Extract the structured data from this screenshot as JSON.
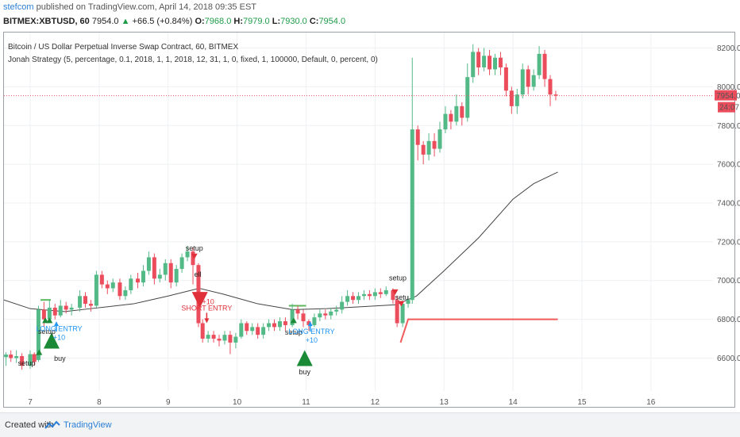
{
  "header": {
    "publisher": "stefcom",
    "published_text": "published on TradingView.com, April 14, 2018 09:35 EST",
    "symbol": "BITMEX:XBTUSD, 60",
    "last": "7954.0",
    "change": "+66.5 (+0.84%)",
    "open_label": "O:",
    "open": "7968.0",
    "high_label": "H:",
    "high": "7979.0",
    "low_label": "L:",
    "low": "7930.0",
    "close_label": "C:",
    "close": "7954.0"
  },
  "legend": {
    "title": "Bitcoin / US Dollar Perpetual Inverse Swap Contract, 60, BITMEX",
    "strategy": "Jonah Strategy (5, percentage, 0.1, 2018, 1, 1, 2018, 12, 31, 1, 0, fixed, 1, 100000, Default, 0, percent, 0)"
  },
  "footer": {
    "created_with": "Created with",
    "brand": "TradingView"
  },
  "colors": {
    "up": "#53b987",
    "down": "#eb4d5c",
    "buy_marker": "#1a8a36",
    "sell_marker": "#e0303a",
    "entry_text": "#2196f3",
    "ma_line": "#444444",
    "stop_line": "#f05a5a",
    "price_line": "#e8556a",
    "grid": "#eef0f3"
  },
  "chart_data": {
    "type": "candlestick",
    "title": "Bitcoin / US Dollar Perpetual Inverse Swap Contract, 60, BITMEX",
    "y_axis": {
      "ticks": [
        6600,
        6800,
        7000,
        7200,
        7400,
        7600,
        7800,
        8000,
        8200
      ],
      "ylim": [
        6430,
        8280
      ]
    },
    "x_axis": {
      "ticks": [
        "7",
        "8",
        "9",
        "10",
        "11",
        "12",
        "13",
        "14",
        "15",
        "16"
      ],
      "xlim": [
        6.62,
        16.9
      ]
    },
    "last_price": {
      "value": 7954.0,
      "label": "7954.0",
      "countdown": "24:07"
    },
    "candles_approx": [
      [
        6.65,
        6605,
        6618,
        6560,
        6630
      ],
      [
        6.72,
        6618,
        6600,
        6580,
        6640
      ],
      [
        6.8,
        6600,
        6610,
        6575,
        6640
      ],
      [
        6.88,
        6610,
        6560,
        6540,
        6625
      ],
      [
        7.0,
        6560,
        6620,
        6545,
        6640
      ],
      [
        7.06,
        6620,
        6580,
        6560,
        6630
      ],
      [
        7.12,
        6590,
        6850,
        6580,
        6870
      ],
      [
        7.2,
        6850,
        6800,
        6760,
        6890
      ],
      [
        7.28,
        6800,
        6860,
        6780,
        6900
      ],
      [
        7.36,
        6860,
        6820,
        6800,
        6880
      ],
      [
        7.44,
        6820,
        6870,
        6810,
        6900
      ],
      [
        7.52,
        6870,
        6850,
        6830,
        6890
      ],
      [
        7.6,
        6850,
        6860,
        6820,
        6880
      ],
      [
        7.72,
        6860,
        6920,
        6840,
        6950
      ],
      [
        7.8,
        6920,
        6880,
        6860,
        6940
      ],
      [
        7.88,
        6880,
        6870,
        6840,
        6900
      ],
      [
        7.96,
        6870,
        7030,
        6860,
        7050
      ],
      [
        8.04,
        7030,
        6980,
        6960,
        7050
      ],
      [
        8.12,
        6980,
        6960,
        6930,
        7000
      ],
      [
        8.2,
        6960,
        6990,
        6940,
        7010
      ],
      [
        8.3,
        6990,
        6920,
        6900,
        7010
      ],
      [
        8.38,
        6920,
        6950,
        6900,
        6970
      ],
      [
        8.46,
        6950,
        7010,
        6930,
        7030
      ],
      [
        8.56,
        7010,
        6990,
        6960,
        7040
      ],
      [
        8.64,
        6990,
        7050,
        6970,
        7080
      ],
      [
        8.72,
        7050,
        7120,
        7030,
        7150
      ],
      [
        8.8,
        7120,
        7010,
        6980,
        7140
      ],
      [
        8.88,
        7010,
        7030,
        6990,
        7060
      ],
      [
        8.96,
        7030,
        7090,
        7000,
        7110
      ],
      [
        9.04,
        7090,
        6990,
        6960,
        7110
      ],
      [
        9.12,
        6990,
        7060,
        6970,
        7080
      ],
      [
        9.2,
        7060,
        7120,
        7040,
        7140
      ],
      [
        9.28,
        7120,
        7150,
        7100,
        7180
      ],
      [
        9.36,
        7150,
        7080,
        6980,
        7170
      ],
      [
        9.44,
        7080,
        6780,
        6760,
        7090
      ],
      [
        9.5,
        6780,
        6700,
        6680,
        6800
      ],
      [
        9.58,
        6700,
        6720,
        6680,
        6740
      ],
      [
        9.66,
        6720,
        6700,
        6680,
        6740
      ],
      [
        9.74,
        6700,
        6690,
        6660,
        6720
      ],
      [
        9.82,
        6690,
        6720,
        6670,
        6740
      ],
      [
        9.9,
        6720,
        6680,
        6620,
        6740
      ],
      [
        9.98,
        6680,
        6710,
        6650,
        6730
      ],
      [
        10.06,
        6710,
        6780,
        6700,
        6800
      ],
      [
        10.14,
        6780,
        6740,
        6720,
        6790
      ],
      [
        10.22,
        6740,
        6760,
        6720,
        6780
      ],
      [
        10.3,
        6760,
        6720,
        6700,
        6780
      ],
      [
        10.38,
        6720,
        6760,
        6700,
        6780
      ],
      [
        10.46,
        6760,
        6780,
        6740,
        6800
      ],
      [
        10.54,
        6780,
        6760,
        6740,
        6800
      ],
      [
        10.62,
        6760,
        6790,
        6740,
        6810
      ],
      [
        10.7,
        6790,
        6770,
        6740,
        6810
      ],
      [
        10.8,
        6770,
        6850,
        6760,
        6880
      ],
      [
        10.88,
        6850,
        6830,
        6800,
        6870
      ],
      [
        10.96,
        6830,
        6790,
        6760,
        6850
      ],
      [
        11.04,
        6790,
        6770,
        6740,
        6800
      ],
      [
        11.12,
        6770,
        6810,
        6760,
        6830
      ],
      [
        11.2,
        6810,
        6830,
        6790,
        6850
      ],
      [
        11.28,
        6830,
        6820,
        6800,
        6850
      ],
      [
        11.36,
        6820,
        6840,
        6800,
        6860
      ],
      [
        11.44,
        6840,
        6850,
        6820,
        6870
      ],
      [
        11.52,
        6850,
        6890,
        6830,
        6920
      ],
      [
        11.6,
        6890,
        6920,
        6870,
        6950
      ],
      [
        11.68,
        6920,
        6900,
        6880,
        6940
      ],
      [
        11.76,
        6900,
        6920,
        6880,
        6940
      ],
      [
        11.84,
        6920,
        6930,
        6900,
        6950
      ],
      [
        11.92,
        6930,
        6920,
        6900,
        6950
      ],
      [
        12.0,
        6920,
        6940,
        6900,
        6960
      ],
      [
        12.08,
        6940,
        6930,
        6910,
        6960
      ],
      [
        12.16,
        6930,
        6950,
        6920,
        6970
      ],
      [
        12.26,
        6950,
        6900,
        6880,
        6960
      ],
      [
        12.32,
        6900,
        6780,
        6760,
        6920
      ],
      [
        12.4,
        6780,
        6880,
        6760,
        6900
      ],
      [
        12.48,
        6880,
        6900,
        6860,
        6920
      ],
      [
        12.54,
        6900,
        7780,
        6880,
        8150
      ],
      [
        12.62,
        7780,
        7700,
        7620,
        7800
      ],
      [
        12.7,
        7700,
        7650,
        7600,
        7720
      ],
      [
        12.78,
        7650,
        7720,
        7620,
        7760
      ],
      [
        12.86,
        7720,
        7680,
        7640,
        7760
      ],
      [
        12.94,
        7680,
        7780,
        7660,
        7820
      ],
      [
        13.02,
        7780,
        7860,
        7760,
        7900
      ],
      [
        13.1,
        7860,
        7820,
        7780,
        7880
      ],
      [
        13.18,
        7820,
        7900,
        7800,
        7960
      ],
      [
        13.26,
        7900,
        7840,
        7800,
        7920
      ],
      [
        13.34,
        7840,
        8050,
        7820,
        8120
      ],
      [
        13.42,
        8050,
        8180,
        8020,
        8220
      ],
      [
        13.5,
        8180,
        8100,
        8060,
        8200
      ],
      [
        13.58,
        8100,
        8160,
        8080,
        8200
      ],
      [
        13.66,
        8160,
        8090,
        8060,
        8190
      ],
      [
        13.74,
        8090,
        8150,
        8060,
        8170
      ],
      [
        13.82,
        8150,
        8100,
        8060,
        8180
      ],
      [
        13.9,
        8100,
        7980,
        7950,
        8120
      ],
      [
        13.98,
        7980,
        7900,
        7860,
        8000
      ],
      [
        14.06,
        7900,
        7960,
        7860,
        7990
      ],
      [
        14.14,
        7960,
        8090,
        7940,
        8120
      ],
      [
        14.22,
        8090,
        8000,
        7960,
        8110
      ],
      [
        14.3,
        8000,
        8060,
        7980,
        8090
      ],
      [
        14.38,
        8060,
        8170,
        8040,
        8210
      ],
      [
        14.46,
        8170,
        8040,
        8000,
        8190
      ],
      [
        14.54,
        8040,
        7960,
        7900,
        8060
      ],
      [
        14.62,
        7960,
        7954,
        7930,
        7979
      ]
    ],
    "moving_average": [
      [
        6.62,
        6900
      ],
      [
        7.0,
        6855
      ],
      [
        7.5,
        6840
      ],
      [
        8.0,
        6860
      ],
      [
        8.5,
        6880
      ],
      [
        9.0,
        6920
      ],
      [
        9.45,
        6960
      ],
      [
        9.8,
        6930
      ],
      [
        10.3,
        6880
      ],
      [
        10.8,
        6850
      ],
      [
        11.3,
        6855
      ],
      [
        11.8,
        6865
      ],
      [
        12.3,
        6875
      ],
      [
        12.6,
        6920
      ],
      [
        13.0,
        7050
      ],
      [
        13.5,
        7220
      ],
      [
        14.0,
        7420
      ],
      [
        14.3,
        7500
      ],
      [
        14.65,
        7560
      ]
    ],
    "stop_line": [
      [
        12.37,
        6680
      ],
      [
        12.48,
        6800
      ],
      [
        14.65,
        6800
      ]
    ],
    "setup_bands": [
      [
        [
          7.15,
          6900
        ],
        [
          7.3,
          6900
        ]
      ],
      [
        [
          10.75,
          6870
        ],
        [
          11.0,
          6870
        ]
      ]
    ],
    "markers": [
      {
        "kind": "up-small",
        "x": 7.13,
        "price": 6630,
        "color": "buy"
      },
      {
        "kind": "up-small",
        "x": 7.22,
        "price": 6795,
        "color": "buy"
      },
      {
        "kind": "up-small",
        "x": 7.28,
        "price": 6795,
        "color": "buy"
      },
      {
        "kind": "up-big",
        "x": 7.31,
        "price": 6690,
        "color": "buy"
      },
      {
        "kind": "down-small",
        "x": 9.38,
        "price": 7125,
        "color": "sell"
      },
      {
        "kind": "down-big",
        "x": 9.46,
        "price": 6900,
        "color": "sell"
      },
      {
        "kind": "up-small",
        "x": 10.82,
        "price": 6795,
        "color": "buy"
      },
      {
        "kind": "up-big",
        "x": 10.98,
        "price": 6600,
        "color": "buy"
      },
      {
        "kind": "down-small",
        "x": 12.29,
        "price": 6940,
        "color": "sell"
      },
      {
        "kind": "down-small",
        "x": 12.38,
        "price": 6880,
        "color": "sell"
      }
    ],
    "entry_arrows": [
      {
        "dir": "up",
        "x": 7.38,
        "price": 6765,
        "color": "entry"
      },
      {
        "dir": "down",
        "x": 9.56,
        "price": 6805,
        "color": "sell"
      },
      {
        "dir": "up",
        "x": 11.06,
        "price": 6765,
        "color": "entry"
      }
    ],
    "annotations": [
      {
        "text": "setup",
        "x": 6.95,
        "price": 6560,
        "color": "#222"
      },
      {
        "text": "buy",
        "x": 7.43,
        "price": 6585,
        "color": "#222"
      },
      {
        "text": "setup",
        "x": 7.24,
        "price": 6725,
        "color": "#222"
      },
      {
        "text": "LONG ENTRY",
        "x": 7.42,
        "price": 6740,
        "color": "#2196f3"
      },
      {
        "text": "+10",
        "x": 7.42,
        "price": 6695,
        "color": "#2196f3"
      },
      {
        "text": "setup",
        "x": 9.38,
        "price": 7155,
        "color": "#222"
      },
      {
        "text": "ell",
        "x": 9.43,
        "price": 7020,
        "color": "#222"
      },
      {
        "text": "+10",
        "x": 9.58,
        "price": 6878,
        "color": "#e0303a"
      },
      {
        "text": "SHORT ENTRY",
        "x": 9.56,
        "price": 6845,
        "color": "#e0303a"
      },
      {
        "text": "setup",
        "x": 10.82,
        "price": 6720,
        "color": "#222"
      },
      {
        "text": "LONG ENTRY",
        "x": 11.08,
        "price": 6725,
        "color": "#2196f3"
      },
      {
        "text": "+10",
        "x": 11.08,
        "price": 6680,
        "color": "#2196f3"
      },
      {
        "text": "buy",
        "x": 10.98,
        "price": 6515,
        "color": "#222"
      },
      {
        "text": "setup",
        "x": 12.33,
        "price": 7000,
        "color": "#222"
      },
      {
        "text": "setu",
        "x": 12.39,
        "price": 6900,
        "color": "#222"
      }
    ]
  }
}
